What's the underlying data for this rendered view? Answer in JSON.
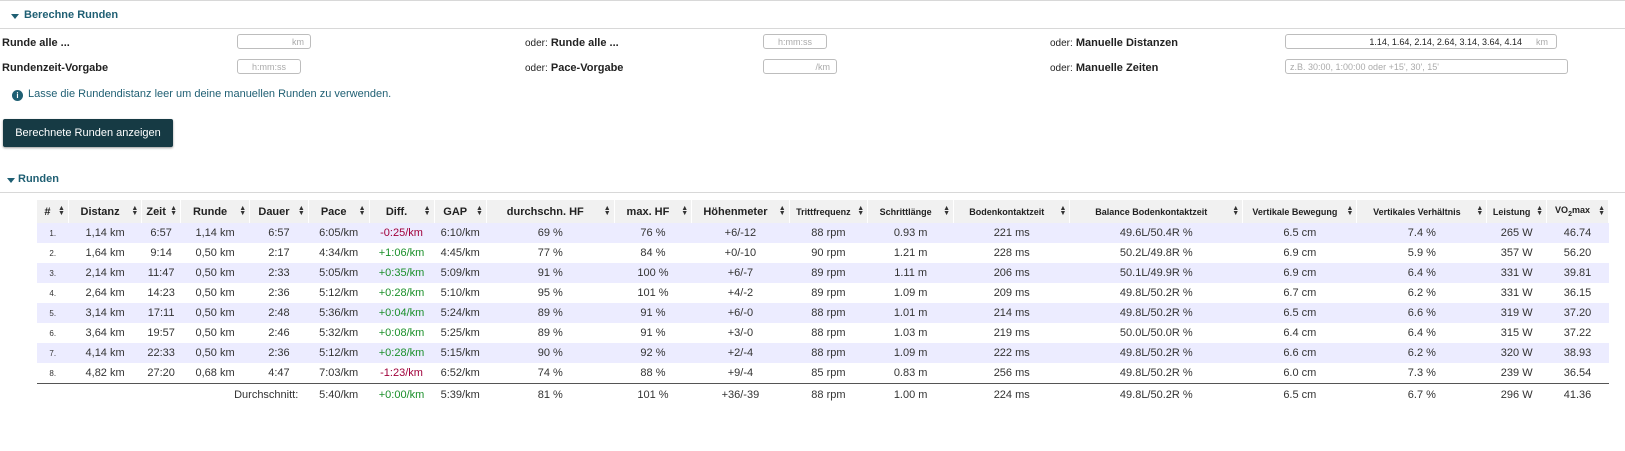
{
  "form": {
    "section_title": "Berechne Runden",
    "lap_every_label": "Runde alle ...",
    "lap_every_unit": "km",
    "or_label": "oder:",
    "lap_every_time_label": "Runde alle ...",
    "lap_every_time_placeholder": "h:mm:ss",
    "manual_distances_label": "Manuelle Distanzen",
    "manual_distances_value": "1.14, 1.64, 2.14, 2.64, 3.14, 3.64, 4.14",
    "manual_distances_unit": "km",
    "lap_time_target_label": "Rundenzeit-Vorgabe",
    "lap_time_target_placeholder": "h:mm:ss",
    "pace_target_label": "Pace-Vorgabe",
    "pace_target_unit": "/km",
    "manual_times_label": "Manuelle Zeiten",
    "manual_times_placeholder": "z.B. 30:00, 1:00:00 oder +15', 30', 15'",
    "info_text": "Lasse die Rundendistanz leer um deine manuellen Runden zu verwenden.",
    "info_icon": "info-icon",
    "show_button": "Berechnete Runden anzeigen"
  },
  "laps": {
    "section_title": "Runden",
    "columns": [
      "#",
      "Distanz",
      "Zeit",
      "Runde",
      "Dauer",
      "Pace",
      "Diff.",
      "GAP",
      "durchschn. HF",
      "max. HF",
      "Höhenmeter",
      "Trittfrequenz",
      "Schrittlänge",
      "Bodenkontaktzeit",
      "Balance Bodenkontaktzeit",
      "Vertikale Bewegung",
      "Vertikales Verhältnis",
      "Leistung",
      "VO2max"
    ],
    "vo2_main": "VO",
    "vo2_sub": "2",
    "vo2_rest": "max",
    "rows": [
      [
        "1.",
        "1,14 km",
        "6:57",
        "1,14 km",
        "6:57",
        "6:05/km",
        "-0:25/km",
        "6:10/km",
        "69 %",
        "76 %",
        "+6/-12",
        "88 rpm",
        "0.93 m",
        "221 ms",
        "49.6L/50.4R %",
        "6.5 cm",
        "7.4 %",
        "265 W",
        "46.74"
      ],
      [
        "2.",
        "1,64 km",
        "9:14",
        "0,50 km",
        "2:17",
        "4:34/km",
        "+1:06/km",
        "4:45/km",
        "77 %",
        "84 %",
        "+0/-10",
        "90 rpm",
        "1.21 m",
        "228 ms",
        "50.2L/49.8R %",
        "6.9 cm",
        "5.9 %",
        "357 W",
        "56.20"
      ],
      [
        "3.",
        "2,14 km",
        "11:47",
        "0,50 km",
        "2:33",
        "5:05/km",
        "+0:35/km",
        "5:09/km",
        "91 %",
        "100 %",
        "+6/-7",
        "89 rpm",
        "1.11 m",
        "206 ms",
        "50.1L/49.9R %",
        "6.9 cm",
        "6.4 %",
        "331 W",
        "39.81"
      ],
      [
        "4.",
        "2,64 km",
        "14:23",
        "0,50 km",
        "2:36",
        "5:12/km",
        "+0:28/km",
        "5:10/km",
        "95 %",
        "101 %",
        "+4/-2",
        "89 rpm",
        "1.09 m",
        "209 ms",
        "49.8L/50.2R %",
        "6.7 cm",
        "6.2 %",
        "331 W",
        "36.15"
      ],
      [
        "5.",
        "3,14 km",
        "17:11",
        "0,50 km",
        "2:48",
        "5:36/km",
        "+0:04/km",
        "5:24/km",
        "89 %",
        "91 %",
        "+6/-0",
        "88 rpm",
        "1.01 m",
        "214 ms",
        "49.8L/50.2R %",
        "6.5 cm",
        "6.6 %",
        "319 W",
        "37.20"
      ],
      [
        "6.",
        "3,64 km",
        "19:57",
        "0,50 km",
        "2:46",
        "5:32/km",
        "+0:08/km",
        "5:25/km",
        "89 %",
        "91 %",
        "+3/-0",
        "88 rpm",
        "1.03 m",
        "219 ms",
        "50.0L/50.0R %",
        "6.4 cm",
        "6.4 %",
        "315 W",
        "37.22"
      ],
      [
        "7.",
        "4,14 km",
        "22:33",
        "0,50 km",
        "2:36",
        "5:12/km",
        "+0:28/km",
        "5:15/km",
        "90 %",
        "92 %",
        "+2/-4",
        "88 rpm",
        "1.09 m",
        "222 ms",
        "49.8L/50.2R %",
        "6.6 cm",
        "6.2 %",
        "320 W",
        "38.93"
      ],
      [
        "8.",
        "4,82 km",
        "27:20",
        "0,68 km",
        "4:47",
        "7:03/km",
        "-1:23/km",
        "6:52/km",
        "74 %",
        "88 %",
        "+9/-4",
        "85 rpm",
        "0.83 m",
        "256 ms",
        "49.8L/50.2R %",
        "6.0 cm",
        "7.3 %",
        "239 W",
        "36.54"
      ]
    ],
    "summary_label": "Durchschnitt:",
    "summary": [
      "5:40/km",
      "+0:00/km",
      "5:39/km",
      "81 %",
      "101 %",
      "+36/-39",
      "88 rpm",
      "1.00 m",
      "224 ms",
      "49.8L/50.2R %",
      "6.5 cm",
      "6.7 %",
      "296 W",
      "41.36"
    ],
    "diff_colors": {
      "negative": "#a0003a",
      "positive": "#1a8f2a"
    }
  }
}
